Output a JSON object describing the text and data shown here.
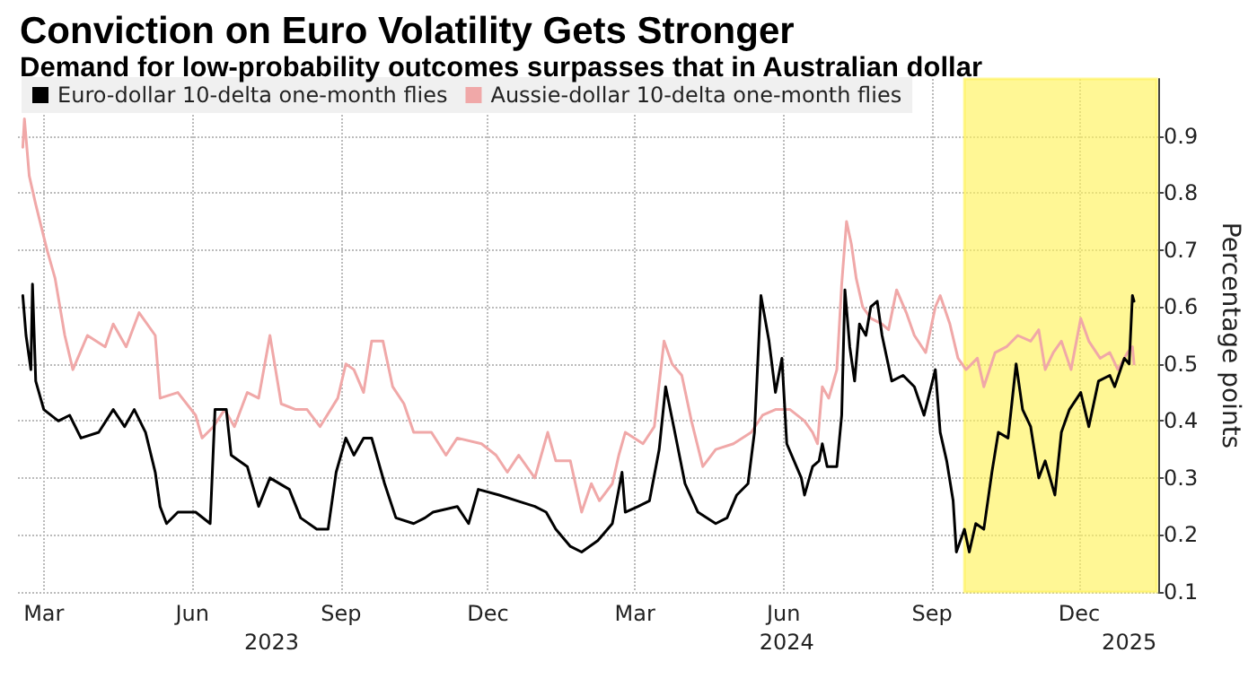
{
  "chart_data": {
    "type": "line",
    "title": "Conviction on Euro Volatility Gets Stronger",
    "subtitle": "Demand for low-probability outcomes surpasses that in Australian dollar",
    "ylabel": "Percentage points",
    "legend": "top left",
    "grid": true,
    "marker": "none",
    "line_style": "solid",
    "xlim": [
      "2023-02-13",
      "2025-01-19"
    ],
    "xticks": [
      {
        "value": "2023-03-01",
        "label": "Mar"
      },
      {
        "value": "2023-06-01",
        "label": "Jun"
      },
      {
        "value": "2023-09-01",
        "label": "Sep"
      },
      {
        "value": "2023-12-01",
        "label": "Dec"
      },
      {
        "value": "2024-03-01",
        "label": "Mar"
      },
      {
        "value": "2024-06-01",
        "label": "Jun"
      },
      {
        "value": "2024-09-01",
        "label": "Sep"
      },
      {
        "value": "2024-12-01",
        "label": "Dec"
      }
    ],
    "x2lim": [
      "2023-02-13",
      "2025-01-19"
    ],
    "x2ticks": [
      {
        "value": "2023-07-20",
        "label": "2023"
      },
      {
        "value": "2024-06-03",
        "label": "2024"
      },
      {
        "value": "2025-01-01",
        "label": "2025"
      }
    ],
    "ylim": [
      0.1,
      1.0
    ],
    "yticks": [
      0.1,
      0.2,
      0.3,
      0.4,
      0.5,
      0.6,
      0.7,
      0.8,
      0.9
    ],
    "bands": [
      {
        "axis": "x",
        "from": "2024-09-21",
        "to": "2025-01-18",
        "color": "#fff35c"
      }
    ],
    "series": [
      {
        "name": "Euro-dollar 10-delta one-month flies",
        "color": "#000000",
        "x": [
          "2023-02-16",
          "2023-02-18",
          "2023-02-21",
          "2023-02-22",
          "2023-02-24",
          "2023-03-01",
          "2023-03-10",
          "2023-03-17",
          "2023-03-24",
          "2023-04-04",
          "2023-04-13",
          "2023-04-20",
          "2023-04-26",
          "2023-05-03",
          "2023-05-09",
          "2023-05-12",
          "2023-05-16",
          "2023-05-23",
          "2023-06-03",
          "2023-06-12",
          "2023-06-15",
          "2023-06-22",
          "2023-06-25",
          "2023-07-05",
          "2023-07-12",
          "2023-07-19",
          "2023-07-31",
          "2023-08-07",
          "2023-08-17",
          "2023-08-24",
          "2023-08-29",
          "2023-09-04",
          "2023-09-09",
          "2023-09-15",
          "2023-09-20",
          "2023-09-28",
          "2023-10-05",
          "2023-10-16",
          "2023-10-23",
          "2023-10-28",
          "2023-11-12",
          "2023-11-19",
          "2023-11-25",
          "2023-12-08",
          "2023-12-19",
          "2023-12-30",
          "2024-01-06",
          "2024-01-12",
          "2024-01-21",
          "2024-01-28",
          "2024-02-07",
          "2024-02-16",
          "2024-02-22",
          "2024-02-24",
          "2024-03-03",
          "2024-03-10",
          "2024-03-16",
          "2024-03-20",
          "2024-03-25",
          "2024-04-01",
          "2024-04-09",
          "2024-04-20",
          "2024-04-27",
          "2024-05-03",
          "2024-05-10",
          "2024-05-14",
          "2024-05-18",
          "2024-05-23",
          "2024-05-27",
          "2024-05-31",
          "2024-06-03",
          "2024-06-12",
          "2024-06-14",
          "2024-06-19",
          "2024-06-23",
          "2024-06-25",
          "2024-06-28",
          "2024-07-04",
          "2024-07-07",
          "2024-07-09",
          "2024-07-12",
          "2024-07-15",
          "2024-07-18",
          "2024-07-22",
          "2024-07-25",
          "2024-07-29",
          "2024-08-01",
          "2024-08-07",
          "2024-08-14",
          "2024-08-21",
          "2024-08-27",
          "2024-09-03",
          "2024-09-06",
          "2024-09-10",
          "2024-09-14",
          "2024-09-16",
          "2024-09-21",
          "2024-09-24",
          "2024-09-28",
          "2024-10-03",
          "2024-10-08",
          "2024-10-12",
          "2024-10-18",
          "2024-10-23",
          "2024-10-27",
          "2024-11-01",
          "2024-11-06",
          "2024-11-10",
          "2024-11-16",
          "2024-11-20",
          "2024-11-25",
          "2024-12-02",
          "2024-12-07",
          "2024-12-13",
          "2024-12-20",
          "2024-12-23",
          "2024-12-29",
          "2025-01-01",
          "2025-01-03",
          "2025-01-04"
        ],
        "values": [
          0.62,
          0.55,
          0.49,
          0.64,
          0.47,
          0.42,
          0.4,
          0.41,
          0.37,
          0.38,
          0.42,
          0.39,
          0.42,
          0.38,
          0.31,
          0.25,
          0.22,
          0.24,
          0.24,
          0.22,
          0.42,
          0.42,
          0.34,
          0.32,
          0.25,
          0.3,
          0.28,
          0.23,
          0.21,
          0.21,
          0.31,
          0.37,
          0.34,
          0.37,
          0.37,
          0.29,
          0.23,
          0.22,
          0.23,
          0.24,
          0.25,
          0.22,
          0.28,
          0.27,
          0.26,
          0.25,
          0.24,
          0.21,
          0.18,
          0.17,
          0.19,
          0.22,
          0.31,
          0.24,
          0.25,
          0.26,
          0.35,
          0.46,
          0.39,
          0.29,
          0.24,
          0.22,
          0.23,
          0.27,
          0.29,
          0.38,
          0.62,
          0.54,
          0.45,
          0.51,
          0.36,
          0.3,
          0.27,
          0.32,
          0.33,
          0.36,
          0.32,
          0.32,
          0.41,
          0.63,
          0.53,
          0.47,
          0.57,
          0.55,
          0.6,
          0.61,
          0.55,
          0.47,
          0.48,
          0.46,
          0.41,
          0.49,
          0.38,
          0.33,
          0.26,
          0.17,
          0.21,
          0.17,
          0.22,
          0.21,
          0.31,
          0.38,
          0.37,
          0.5,
          0.42,
          0.39,
          0.3,
          0.33,
          0.27,
          0.38,
          0.42,
          0.45,
          0.39,
          0.47,
          0.48,
          0.46,
          0.51,
          0.5,
          0.62,
          0.61
        ]
      },
      {
        "name": "Aussie-dollar 10-delta one-month flies",
        "color": "#f0a8a8",
        "x": [
          "2023-02-16",
          "2023-02-17",
          "2023-02-20",
          "2023-02-24",
          "2023-03-03",
          "2023-03-08",
          "2023-03-14",
          "2023-03-19",
          "2023-03-28",
          "2023-04-08",
          "2023-04-13",
          "2023-04-21",
          "2023-04-29",
          "2023-05-09",
          "2023-05-12",
          "2023-05-23",
          "2023-06-03",
          "2023-06-07",
          "2023-06-14",
          "2023-06-21",
          "2023-06-27",
          "2023-07-05",
          "2023-07-12",
          "2023-07-19",
          "2023-07-26",
          "2023-08-04",
          "2023-08-11",
          "2023-08-19",
          "2023-08-30",
          "2023-09-04",
          "2023-09-09",
          "2023-09-15",
          "2023-09-20",
          "2023-09-27",
          "2023-10-03",
          "2023-10-10",
          "2023-10-16",
          "2023-10-27",
          "2023-11-05",
          "2023-11-12",
          "2023-11-27",
          "2023-12-06",
          "2023-12-13",
          "2023-12-20",
          "2023-12-30",
          "2024-01-07",
          "2024-01-12",
          "2024-01-21",
          "2024-01-28",
          "2024-02-03",
          "2024-02-08",
          "2024-02-16",
          "2024-02-20",
          "2024-02-24",
          "2024-03-06",
          "2024-03-13",
          "2024-03-19",
          "2024-03-24",
          "2024-03-30",
          "2024-04-05",
          "2024-04-12",
          "2024-04-20",
          "2024-05-01",
          "2024-05-12",
          "2024-05-19",
          "2024-05-27",
          "2024-06-05",
          "2024-06-14",
          "2024-06-19",
          "2024-06-22",
          "2024-06-25",
          "2024-06-29",
          "2024-07-04",
          "2024-07-07",
          "2024-07-10",
          "2024-07-13",
          "2024-07-16",
          "2024-07-20",
          "2024-07-25",
          "2024-08-01",
          "2024-08-05",
          "2024-08-10",
          "2024-08-16",
          "2024-08-21",
          "2024-08-28",
          "2024-09-03",
          "2024-09-06",
          "2024-09-12",
          "2024-09-17",
          "2024-09-22",
          "2024-09-29",
          "2024-10-03",
          "2024-10-10",
          "2024-10-17",
          "2024-10-24",
          "2024-11-01",
          "2024-11-06",
          "2024-11-10",
          "2024-11-15",
          "2024-11-20",
          "2024-11-26",
          "2024-12-02",
          "2024-12-07",
          "2024-12-14",
          "2024-12-20",
          "2024-12-25",
          "2024-12-31",
          "2025-01-03",
          "2025-01-04"
        ],
        "values": [
          0.88,
          0.93,
          0.83,
          0.78,
          0.7,
          0.65,
          0.55,
          0.49,
          0.55,
          0.53,
          0.57,
          0.53,
          0.59,
          0.55,
          0.44,
          0.45,
          0.41,
          0.37,
          0.39,
          0.42,
          0.39,
          0.45,
          0.44,
          0.55,
          0.43,
          0.42,
          0.42,
          0.39,
          0.44,
          0.5,
          0.49,
          0.45,
          0.54,
          0.54,
          0.46,
          0.43,
          0.38,
          0.38,
          0.34,
          0.37,
          0.36,
          0.34,
          0.31,
          0.34,
          0.3,
          0.38,
          0.33,
          0.33,
          0.24,
          0.29,
          0.26,
          0.29,
          0.34,
          0.38,
          0.36,
          0.39,
          0.54,
          0.5,
          0.48,
          0.4,
          0.32,
          0.35,
          0.36,
          0.38,
          0.41,
          0.42,
          0.42,
          0.4,
          0.38,
          0.36,
          0.46,
          0.44,
          0.49,
          0.64,
          0.75,
          0.71,
          0.65,
          0.6,
          0.58,
          0.57,
          0.56,
          0.63,
          0.59,
          0.55,
          0.52,
          0.6,
          0.62,
          0.57,
          0.51,
          0.49,
          0.51,
          0.46,
          0.52,
          0.53,
          0.55,
          0.54,
          0.56,
          0.49,
          0.52,
          0.54,
          0.49,
          0.58,
          0.54,
          0.51,
          0.52,
          0.49,
          0.52,
          0.53,
          0.5
        ]
      }
    ]
  }
}
